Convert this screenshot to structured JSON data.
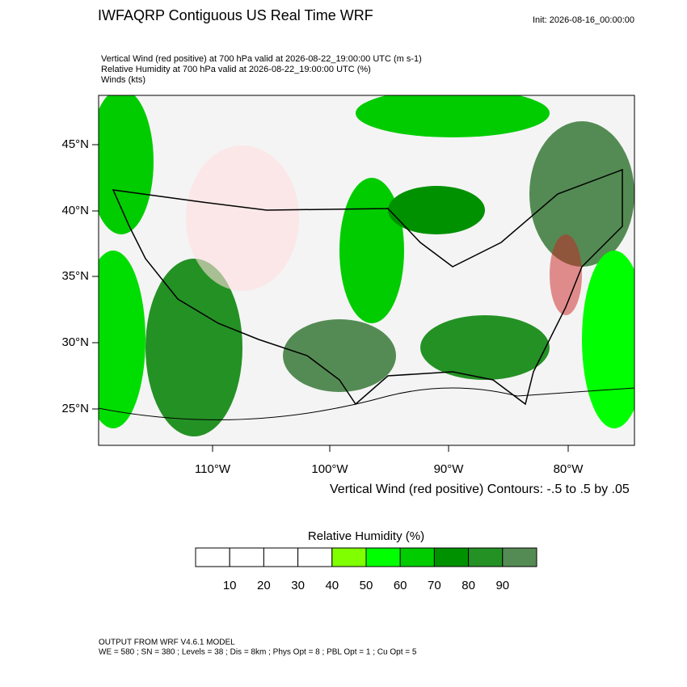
{
  "header": {
    "title": "IWFAQRP Contiguous US Real Time WRF",
    "init": "Init: 2026-08-16_00:00:00",
    "fields": [
      "Vertical Wind (red positive) at 700 hPa valid at 2026-08-22_19:00:00 UTC   (m s-1)",
      "Relative Humidity at 700 hPa valid at 2026-08-22_19:00:00 UTC   (%)",
      "Winds   (kts)"
    ]
  },
  "map": {
    "lat_labels": [
      "45°N",
      "40°N",
      "35°N",
      "30°N",
      "25°N"
    ],
    "lon_labels": [
      "110°W",
      "100°W",
      "90°W",
      "80°W"
    ],
    "contour_note": "Vertical Wind (red positive) Contours: -.5 to .5 by .05"
  },
  "colorbar": {
    "title": "Relative Humidity  (%)",
    "colors": [
      "#ffffff",
      "#ffffff",
      "#ffffff",
      "#ffffff",
      "#80ff00",
      "#00ff00",
      "#00cc00",
      "#009100",
      "#249124",
      "#548b54"
    ],
    "labels": [
      10,
      20,
      30,
      40,
      50,
      60,
      70,
      80,
      90
    ]
  },
  "footer": [
    "OUTPUT FROM WRF V4.6.1 MODEL",
    "WE = 580 ; SN = 380 ; Levels = 38 ; Dis = 8km ; Phys Opt = 8 ; PBL Opt = 1 ; Cu Opt = 5"
  ]
}
